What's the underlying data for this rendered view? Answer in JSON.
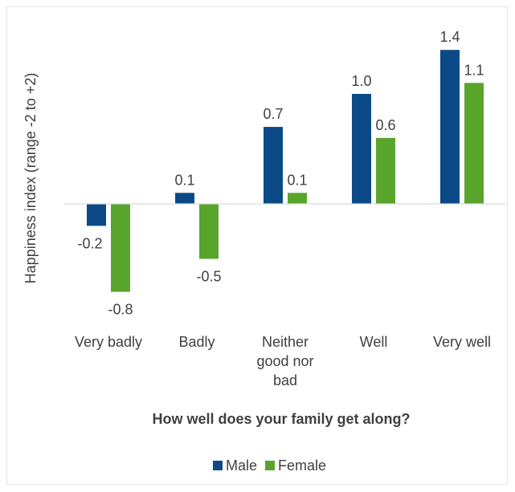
{
  "chart_data": {
    "type": "bar",
    "categories": [
      [
        "Very badly"
      ],
      [
        "Badly"
      ],
      [
        "Neither",
        "good nor",
        "bad"
      ],
      [
        "Well"
      ],
      [
        "Very well"
      ]
    ],
    "series": [
      {
        "name": "Male",
        "color": "#0b4a86",
        "values": [
          -0.2,
          0.1,
          0.7,
          1.0,
          1.4
        ]
      },
      {
        "name": "Female",
        "color": "#59a52c",
        "values": [
          -0.8,
          -0.5,
          0.1,
          0.6,
          1.1
        ]
      }
    ],
    "value_labels": [
      [
        "-0.2",
        "0.1",
        "0.7",
        "1.0",
        "1.4"
      ],
      [
        "-0.8",
        "-0.5",
        "0.1",
        "0.6",
        "1.1"
      ]
    ],
    "title": "",
    "xlabel": "How well does your family get along?",
    "ylabel": "Happiness index (range -2 to +2)",
    "ylim": [
      -1.0,
      1.6
    ],
    "y_tick_labels": false,
    "zero_line": true,
    "legend_position": "bottom",
    "grid": false
  }
}
